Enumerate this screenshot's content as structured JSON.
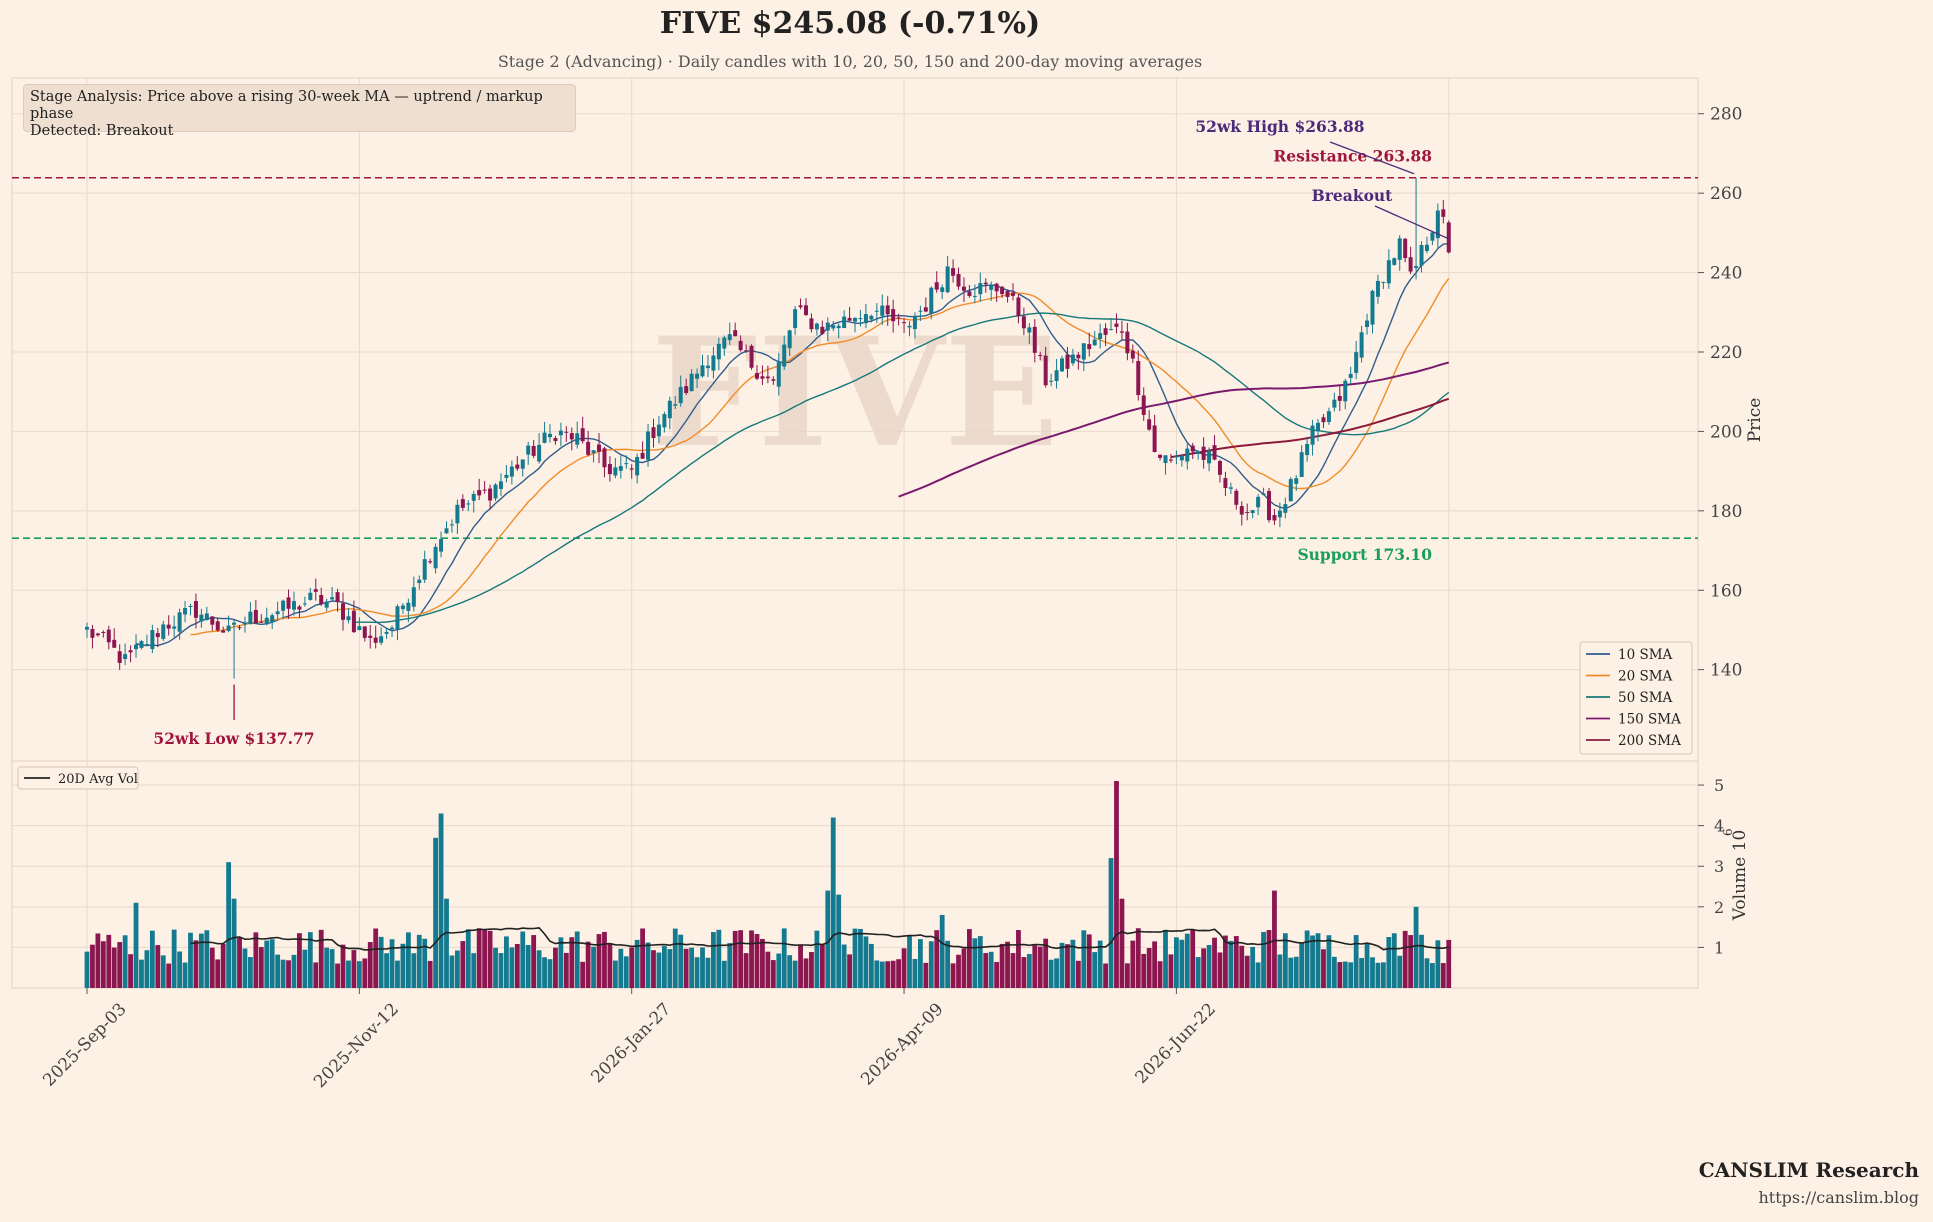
{
  "header": {
    "title": "FIVE  $245.08  (-0.71%)",
    "subtitle": "Stage 2 (Advancing)  ·  Daily candles with 10, 20, 50, 150 and 200-day moving averages"
  },
  "stage_box": {
    "line1": "Stage Analysis: Price above a rising 30-week MA — uptrend / markup phase",
    "line2": "Detected: Breakout"
  },
  "footer": {
    "brand": "CANSLIM Research",
    "url": "https://canslim.blog"
  },
  "colors": {
    "up": "#147a8f",
    "down": "#8b1650",
    "sma10": "#2f5d8c",
    "sma20": "#f28c28",
    "sma50": "#17787a",
    "sma150": "#7a1a6e",
    "sma200": "#8b1a3a",
    "support": "#1a9e5a",
    "resistance": "#a0153e",
    "annot": "#4b2a7a",
    "avgvol": "#222222"
  },
  "chart_data": {
    "type": "candlestick",
    "watermark": "FIVE",
    "x_tick_labels": [
      "2025-Sep-03",
      "2025-Nov-12",
      "2026-Jan-27",
      "2026-Apr-09",
      "2026-Jun-22"
    ],
    "x_tick_index": [
      0,
      50,
      100,
      150,
      200
    ],
    "price_axis": {
      "label": "Price",
      "ylim": [
        117,
        289
      ],
      "ticks": [
        140,
        160,
        180,
        200,
        220,
        240,
        260,
        280
      ]
    },
    "volume_axis": {
      "label": "Volume",
      "exponent": "10^6",
      "ylim": [
        0,
        5.1
      ],
      "ticks": [
        1,
        2,
        3,
        4,
        5
      ]
    },
    "sessions": 251,
    "anchors": [
      [
        0,
        150
      ],
      [
        4,
        146
      ],
      [
        7,
        142
      ],
      [
        10,
        146
      ],
      [
        14,
        151
      ],
      [
        20,
        155
      ],
      [
        26,
        149
      ],
      [
        30,
        153
      ],
      [
        36,
        155
      ],
      [
        42,
        158
      ],
      [
        46,
        156
      ],
      [
        52,
        147
      ],
      [
        56,
        151
      ],
      [
        60,
        162
      ],
      [
        64,
        172
      ],
      [
        68,
        180
      ],
      [
        74,
        185
      ],
      [
        80,
        193
      ],
      [
        86,
        200
      ],
      [
        90,
        198
      ],
      [
        95,
        191
      ],
      [
        100,
        190
      ],
      [
        105,
        203
      ],
      [
        110,
        211
      ],
      [
        114,
        219
      ],
      [
        118,
        223
      ],
      [
        122,
        217
      ],
      [
        126,
        212
      ],
      [
        130,
        230
      ],
      [
        135,
        226
      ],
      [
        139,
        228
      ],
      [
        144,
        231
      ],
      [
        150,
        226
      ],
      [
        154,
        232
      ],
      [
        158,
        241
      ],
      [
        162,
        236
      ],
      [
        168,
        236
      ],
      [
        172,
        228
      ],
      [
        176,
        213
      ],
      [
        180,
        217
      ],
      [
        185,
        223
      ],
      [
        190,
        226
      ],
      [
        192,
        217
      ],
      [
        196,
        195
      ],
      [
        199,
        192
      ],
      [
        202,
        196
      ],
      [
        206,
        193
      ],
      [
        210,
        184
      ],
      [
        213,
        180
      ],
      [
        216,
        182
      ],
      [
        218,
        178
      ],
      [
        221,
        186
      ],
      [
        225,
        199
      ],
      [
        229,
        206
      ],
      [
        232,
        214
      ],
      [
        235,
        230
      ],
      [
        238,
        240
      ],
      [
        241,
        247
      ],
      [
        243,
        238
      ],
      [
        245,
        245
      ],
      [
        247,
        252
      ],
      [
        248,
        257
      ],
      [
        249,
        252
      ],
      [
        250,
        245
      ]
    ],
    "volume_spikes": [
      [
        9,
        2.1
      ],
      [
        26,
        3.1
      ],
      [
        27,
        2.2
      ],
      [
        64,
        3.7
      ],
      [
        65,
        4.3
      ],
      [
        66,
        2.2
      ],
      [
        136,
        2.4
      ],
      [
        137,
        4.2
      ],
      [
        138,
        2.3
      ],
      [
        157,
        1.8
      ],
      [
        188,
        3.2
      ],
      [
        189,
        5.1
      ],
      [
        190,
        2.2
      ],
      [
        218,
        2.4
      ],
      [
        244,
        2.0
      ]
    ],
    "moving_averages": [
      {
        "name": "10 SMA",
        "period": 10
      },
      {
        "name": "20 SMA",
        "period": 20
      },
      {
        "name": "50 SMA",
        "period": 50
      },
      {
        "name": "150 SMA",
        "period": 150
      },
      {
        "name": "200 SMA",
        "period": 200
      }
    ],
    "volume_legend": "20D Avg Vol",
    "support": {
      "value": 173.1,
      "label": "Support 173.10"
    },
    "resistance": {
      "value": 263.88,
      "label": "Resistance 263.88"
    },
    "annotations": {
      "high": {
        "label": "52wk High $263.88",
        "index": 244,
        "value": 263.88
      },
      "low": {
        "label": "52wk Low $137.77",
        "index": 27,
        "value": 137.77
      },
      "breakout": {
        "label": "Breakout",
        "index": 250,
        "value": 248.5
      }
    }
  }
}
